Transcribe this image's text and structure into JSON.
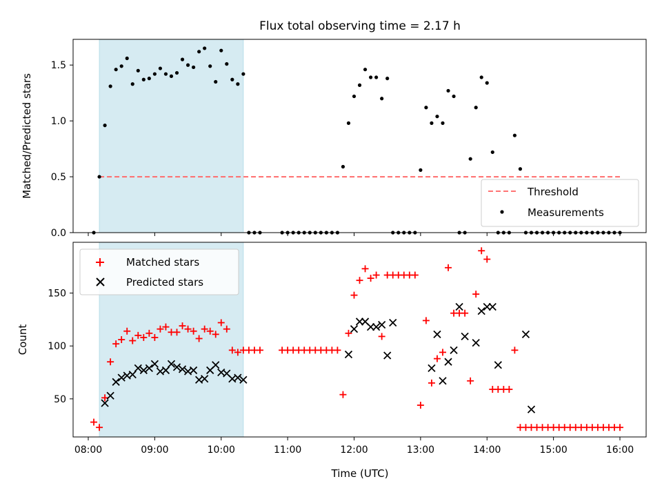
{
  "chart_data": {
    "title": "Flux total observing time = 2.17 h",
    "xlabel": "Time (UTC)",
    "x_tick_labels": [
      "08:00",
      "09:00",
      "10:00",
      "11:00",
      "12:00",
      "13:00",
      "14:00",
      "15:00",
      "16:00"
    ],
    "highlight_span": {
      "start": "08:10",
      "end": "10:20",
      "color": "#add8e6"
    },
    "panels": [
      {
        "id": "ratio",
        "type": "scatter",
        "ylabel": "Matched/Predicted stars",
        "ylim": [
          0,
          1.73
        ],
        "y_ticks": [
          "0.0",
          "0.5",
          "1.0",
          "1.5"
        ],
        "legend": {
          "position": "bottom-right",
          "entries": [
            "Threshold",
            "Measurements"
          ]
        },
        "threshold": {
          "name": "Threshold",
          "value": 0.5,
          "x_start": "08:10",
          "x_end": "16:00",
          "color": "#ff6b6b",
          "style": "dashed"
        },
        "series": [
          {
            "name": "Measurements",
            "marker": "dot",
            "color": "#000000",
            "x": [
              "08:05",
              "08:10",
              "08:15",
              "08:20",
              "08:25",
              "08:30",
              "08:35",
              "08:40",
              "08:45",
              "08:50",
              "08:55",
              "09:00",
              "09:05",
              "09:10",
              "09:15",
              "09:20",
              "09:25",
              "09:30",
              "09:35",
              "09:40",
              "09:45",
              "09:50",
              "09:55",
              "10:00",
              "10:05",
              "10:10",
              "10:15",
              "10:20",
              "10:25",
              "10:30",
              "10:35",
              "10:55",
              "11:00",
              "11:05",
              "11:10",
              "11:15",
              "11:20",
              "11:25",
              "11:30",
              "11:35",
              "11:40",
              "11:45",
              "11:50",
              "11:55",
              "12:00",
              "12:05",
              "12:10",
              "12:15",
              "12:20",
              "12:25",
              "12:30",
              "12:35",
              "12:40",
              "12:45",
              "12:50",
              "12:55",
              "13:00",
              "13:05",
              "13:10",
              "13:15",
              "13:20",
              "13:25",
              "13:30",
              "13:35",
              "13:40",
              "13:45",
              "13:50",
              "13:55",
              "14:00",
              "14:05",
              "14:10",
              "14:15",
              "14:20",
              "14:25",
              "14:30",
              "14:35",
              "14:40",
              "14:45",
              "14:50",
              "14:55",
              "15:00",
              "15:05",
              "15:10",
              "15:15",
              "15:20",
              "15:25",
              "15:30",
              "15:35",
              "15:40",
              "15:45",
              "15:50",
              "15:55",
              "16:00"
            ],
            "y": [
              0.0,
              0.5,
              0.96,
              1.31,
              1.46,
              1.49,
              1.56,
              1.33,
              1.45,
              1.37,
              1.38,
              1.42,
              1.47,
              1.42,
              1.4,
              1.43,
              1.55,
              1.5,
              1.48,
              1.62,
              1.65,
              1.49,
              1.35,
              1.63,
              1.51,
              1.37,
              1.33,
              1.42,
              0.0,
              0.0,
              0.0,
              0.0,
              0.0,
              0.0,
              0.0,
              0.0,
              0.0,
              0.0,
              0.0,
              0.0,
              0.0,
              0.0,
              0.59,
              0.98,
              1.22,
              1.32,
              1.46,
              1.39,
              1.39,
              1.2,
              1.38,
              0.0,
              0.0,
              0.0,
              0.0,
              0.0,
              0.56,
              1.12,
              0.98,
              1.04,
              0.98,
              1.27,
              1.22,
              0.0,
              0.0,
              0.66,
              1.12,
              1.39,
              1.34,
              0.72,
              0.0,
              0.0,
              0.0,
              0.87,
              0.57,
              0.0,
              0.0,
              0.0,
              0.0,
              0.0,
              0.0,
              0.0,
              0.0,
              0.0,
              0.0,
              0.0,
              0.0,
              0.0,
              0.0,
              0.0,
              0.0,
              0.0,
              0.0
            ]
          }
        ]
      },
      {
        "id": "counts",
        "type": "scatter",
        "ylabel": "Count",
        "ylim": [
          14,
          198
        ],
        "y_ticks": [
          "50",
          "100",
          "150"
        ],
        "legend": {
          "position": "top-left",
          "entries": [
            "Matched stars",
            "Predicted stars"
          ]
        },
        "series": [
          {
            "name": "Matched stars",
            "marker": "plus",
            "color": "#ff0000",
            "x": [
              "08:05",
              "08:10",
              "08:15",
              "08:20",
              "08:25",
              "08:30",
              "08:35",
              "08:40",
              "08:45",
              "08:50",
              "08:55",
              "09:00",
              "09:05",
              "09:10",
              "09:15",
              "09:20",
              "09:25",
              "09:30",
              "09:35",
              "09:40",
              "09:45",
              "09:50",
              "09:55",
              "10:00",
              "10:05",
              "10:10",
              "10:15",
              "10:20",
              "10:25",
              "10:30",
              "10:35",
              "10:55",
              "11:00",
              "11:05",
              "11:10",
              "11:15",
              "11:20",
              "11:25",
              "11:30",
              "11:35",
              "11:40",
              "11:45",
              "11:50",
              "11:55",
              "12:00",
              "12:05",
              "12:10",
              "12:15",
              "12:20",
              "12:25",
              "12:30",
              "12:35",
              "12:40",
              "12:45",
              "12:50",
              "12:55",
              "13:00",
              "13:05",
              "13:10",
              "13:15",
              "13:20",
              "13:25",
              "13:30",
              "13:35",
              "13:40",
              "13:45",
              "13:50",
              "13:55",
              "14:00",
              "14:05",
              "14:10",
              "14:15",
              "14:20",
              "14:25",
              "14:30",
              "14:35",
              "14:40",
              "14:45",
              "14:50",
              "14:55",
              "15:00",
              "15:05",
              "15:10",
              "15:15",
              "15:20",
              "15:25",
              "15:30",
              "15:35",
              "15:40",
              "15:45",
              "15:50",
              "15:55",
              "16:00"
            ],
            "y": [
              28,
              23,
              51,
              85,
              102,
              106,
              114,
              105,
              110,
              108,
              112,
              108,
              116,
              118,
              113,
              113,
              119,
              116,
              114,
              107,
              116,
              114,
              111,
              122,
              116,
              96,
              94,
              96,
              96,
              96,
              96,
              96,
              96,
              96,
              96,
              96,
              96,
              96,
              96,
              96,
              96,
              96,
              54,
              112,
              148,
              162,
              173,
              164,
              167,
              109,
              167,
              167,
              167,
              167,
              167,
              167,
              44,
              124,
              65,
              88,
              94,
              174,
              131,
              131,
              131,
              67,
              149,
              190,
              182,
              59,
              59,
              59,
              59,
              96,
              23,
              23,
              23,
              23,
              23,
              23,
              23,
              23,
              23,
              23,
              23,
              23,
              23,
              23,
              23,
              23,
              23,
              23,
              23
            ]
          },
          {
            "name": "Predicted stars",
            "marker": "x",
            "color": "#000000",
            "x": [
              "08:15",
              "08:20",
              "08:25",
              "08:30",
              "08:35",
              "08:40",
              "08:45",
              "08:50",
              "08:55",
              "09:00",
              "09:05",
              "09:10",
              "09:15",
              "09:20",
              "09:25",
              "09:30",
              "09:35",
              "09:40",
              "09:45",
              "09:50",
              "09:55",
              "10:00",
              "10:05",
              "10:10",
              "10:15",
              "10:20",
              "11:55",
              "12:00",
              "12:05",
              "12:10",
              "12:15",
              "12:20",
              "12:25",
              "12:30",
              "12:35",
              "13:10",
              "13:15",
              "13:20",
              "13:25",
              "13:30",
              "13:35",
              "13:40",
              "13:50",
              "13:55",
              "14:00",
              "14:05",
              "14:10",
              "14:35",
              "14:40"
            ],
            "y": [
              46,
              53,
              66,
              70,
              72,
              73,
              79,
              77,
              79,
              83,
              76,
              77,
              83,
              80,
              78,
              76,
              77,
              68,
              69,
              77,
              82,
              75,
              74,
              69,
              70,
              68,
              92,
              116,
              123,
              123,
              118,
              118,
              120,
              91,
              122,
              79,
              111,
              67,
              85,
              96,
              137,
              109,
              103,
              133,
              137,
              137,
              82,
              111,
              40
            ]
          }
        ]
      }
    ]
  }
}
